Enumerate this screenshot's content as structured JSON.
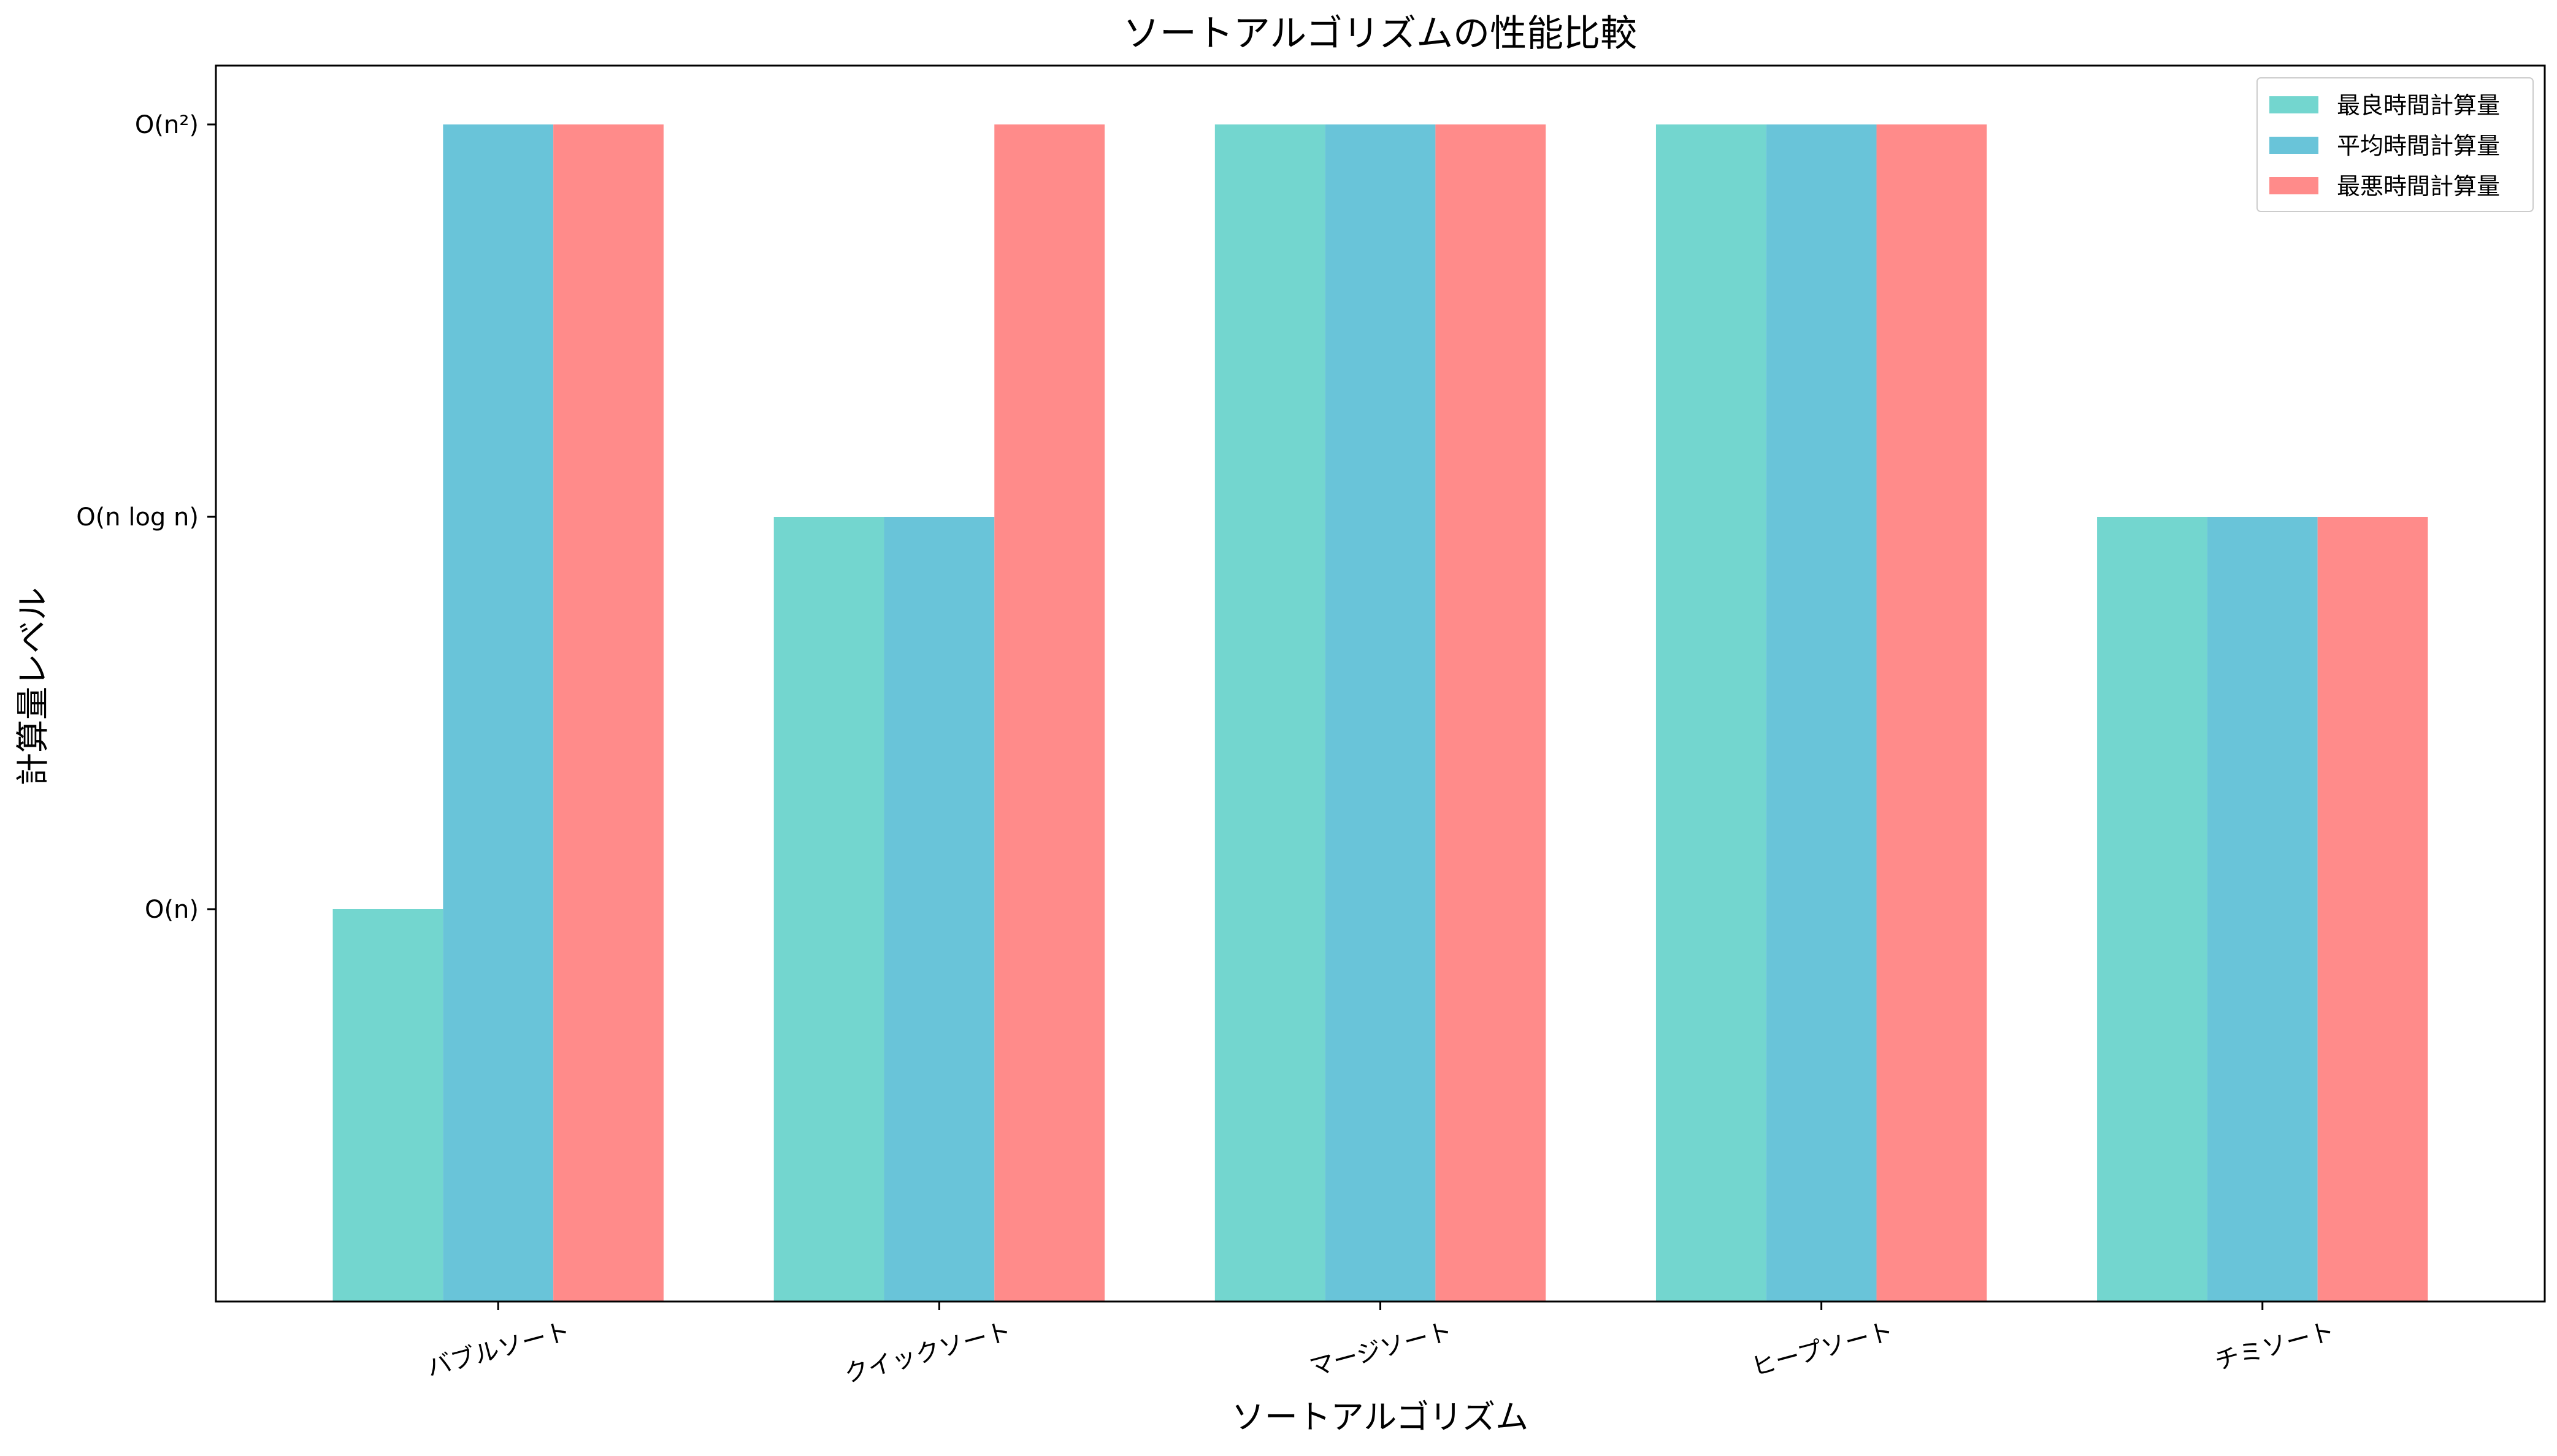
{
  "chart_data": {
    "type": "bar",
    "title": "ソートアルゴリズムの性能比較",
    "xlabel": "ソートアルゴリズム",
    "ylabel": "計算量レベル",
    "categories": [
      "バブルソート",
      "クイックソート",
      "マージソート",
      "ヒープソート",
      "チミソート"
    ],
    "y_ticks": [
      {
        "value": 1,
        "label": "O(n)"
      },
      {
        "value": 2,
        "label": "O(n log n)"
      },
      {
        "value": 3,
        "label": "O(n²)"
      }
    ],
    "ylim": [
      0,
      3.15
    ],
    "grid": false,
    "legend_position": "top-right",
    "series": [
      {
        "name": "最良時間計算量",
        "color": "#73D6CF",
        "values": [
          1,
          2,
          3,
          3,
          2
        ]
      },
      {
        "name": "平均時間計算量",
        "color": "#69C4D9",
        "values": [
          3,
          2,
          3,
          3,
          2
        ]
      },
      {
        "name": "最悪時間計算量",
        "color": "#FF8B8A",
        "values": [
          3,
          3,
          3,
          3,
          2
        ]
      }
    ]
  }
}
